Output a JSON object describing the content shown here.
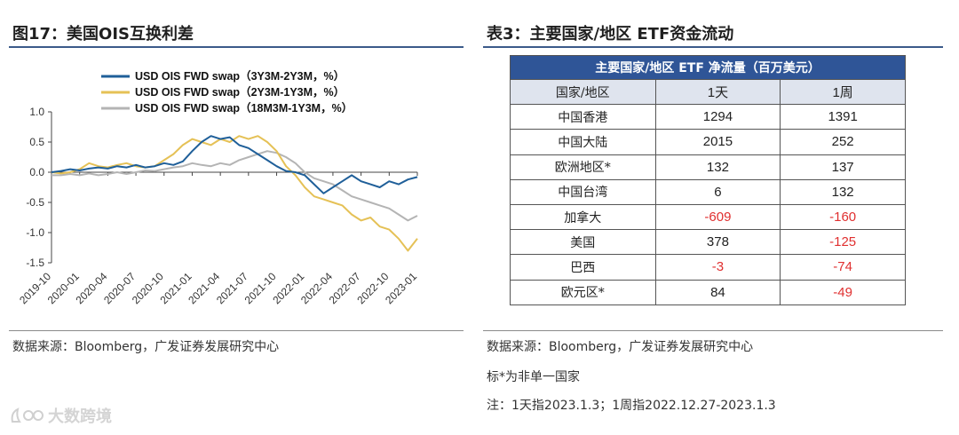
{
  "left_panel": {
    "title": "图17：美国OIS互换利差",
    "source": "数据来源：Bloomberg，广发证券发展研究中心"
  },
  "right_panel": {
    "title": "表3：主要国家/地区  ETF资金流动",
    "source": "数据来源：Bloomberg，广发证券发展研究中心",
    "footnote_star": "标*为非单一国家",
    "footnote_dates": "注：1天指2023.1.3；1周指2022.12.27-2023.1.3"
  },
  "table": {
    "caption": "主要国家/地区 ETF 净流量（百万美元）",
    "headers": [
      "国家/地区",
      "1天",
      "1周"
    ],
    "rows": [
      {
        "region": "中国香港",
        "day": "1294",
        "week": "1391"
      },
      {
        "region": "中国大陆",
        "day": "2015",
        "week": "252"
      },
      {
        "region": "欧洲地区*",
        "day": "132",
        "week": "137"
      },
      {
        "region": "中国台湾",
        "day": "6",
        "week": "132"
      },
      {
        "region": "加拿大",
        "day": "-609",
        "week": "-160"
      },
      {
        "region": "美国",
        "day": "378",
        "week": "-125"
      },
      {
        "region": "巴西",
        "day": "-3",
        "week": "-74"
      },
      {
        "region": "欧元区*",
        "day": "84",
        "week": "-49"
      }
    ]
  },
  "watermark": "大数跨境",
  "colors": {
    "accent": "#2f5597",
    "negative": "#e03030",
    "series1": "#1f5f99",
    "series2": "#e5c156",
    "series3": "#b4b4b4"
  },
  "chart_data": {
    "type": "line",
    "title": "美国OIS互换利差",
    "xlabel": "",
    "ylabel": "",
    "ylim": [
      -1.5,
      1.0
    ],
    "yticks": [
      "1.0",
      "0.5",
      "0.0",
      "-0.5",
      "-1.0",
      "-1.5"
    ],
    "ytick_values": [
      1.0,
      0.5,
      0.0,
      -0.5,
      -1.0,
      -1.5
    ],
    "xticks": [
      "2019-10",
      "2020-01",
      "2020-04",
      "2020-07",
      "2020-10",
      "2021-01",
      "2021-04",
      "2021-07",
      "2021-10",
      "2022-01",
      "2022-04",
      "2022-07",
      "2022-10",
      "2023-01"
    ],
    "x_start": "2019-10",
    "x_end": "2023-01",
    "legend_position": "top",
    "series": [
      {
        "name": "USD OIS FWD swap（3Y3M-2Y3M，%）",
        "color": "#1f5f99",
        "x": [
          0,
          1,
          2,
          3,
          4,
          5,
          6,
          7,
          8,
          9,
          10,
          11,
          12,
          13,
          14,
          15,
          16,
          17,
          18,
          19,
          20,
          21,
          22,
          23,
          24,
          25,
          26,
          27,
          28,
          29,
          30,
          31,
          32,
          33,
          34,
          35,
          36,
          37,
          38,
          39
        ],
        "values": [
          0.0,
          0.02,
          0.05,
          0.03,
          0.06,
          0.08,
          0.06,
          0.1,
          0.08,
          0.12,
          0.08,
          0.1,
          0.15,
          0.12,
          0.18,
          0.35,
          0.5,
          0.6,
          0.55,
          0.58,
          0.45,
          0.4,
          0.3,
          0.2,
          0.1,
          0.02,
          0.0,
          -0.05,
          -0.2,
          -0.35,
          -0.25,
          -0.15,
          -0.05,
          -0.15,
          -0.2,
          -0.25,
          -0.15,
          -0.2,
          -0.12,
          -0.08
        ]
      },
      {
        "name": "USD OIS FWD swap（2Y3M-1Y3M，%）",
        "color": "#e5c156",
        "x": [
          0,
          1,
          2,
          3,
          4,
          5,
          6,
          7,
          8,
          9,
          10,
          11,
          12,
          13,
          14,
          15,
          16,
          17,
          18,
          19,
          20,
          21,
          22,
          23,
          24,
          25,
          26,
          27,
          28,
          29,
          30,
          31,
          32,
          33,
          34,
          35,
          36,
          37,
          38,
          39
        ],
        "values": [
          0.0,
          -0.02,
          0.0,
          0.05,
          0.15,
          0.1,
          0.08,
          0.12,
          0.15,
          0.1,
          0.08,
          0.1,
          0.2,
          0.3,
          0.45,
          0.55,
          0.5,
          0.45,
          0.55,
          0.5,
          0.6,
          0.55,
          0.6,
          0.5,
          0.35,
          0.1,
          -0.05,
          -0.25,
          -0.4,
          -0.45,
          -0.5,
          -0.55,
          -0.7,
          -0.8,
          -0.75,
          -0.9,
          -0.95,
          -1.1,
          -1.3,
          -1.1
        ]
      },
      {
        "name": "USD OIS FWD swap（18M3M-1Y3M，%）",
        "color": "#b4b4b4",
        "x": [
          0,
          1,
          2,
          3,
          4,
          5,
          6,
          7,
          8,
          9,
          10,
          11,
          12,
          13,
          14,
          15,
          16,
          17,
          18,
          19,
          20,
          21,
          22,
          23,
          24,
          25,
          26,
          27,
          28,
          29,
          30,
          31,
          32,
          33,
          34,
          35,
          36,
          37,
          38,
          39
        ],
        "values": [
          -0.05,
          -0.05,
          -0.03,
          -0.05,
          -0.02,
          -0.05,
          -0.03,
          0.0,
          -0.03,
          0.0,
          0.03,
          0.02,
          0.05,
          0.08,
          0.1,
          0.15,
          0.12,
          0.1,
          0.15,
          0.12,
          0.2,
          0.25,
          0.3,
          0.35,
          0.32,
          0.25,
          0.15,
          0.0,
          -0.1,
          -0.15,
          -0.2,
          -0.3,
          -0.4,
          -0.45,
          -0.5,
          -0.55,
          -0.6,
          -0.7,
          -0.8,
          -0.72
        ]
      }
    ]
  }
}
